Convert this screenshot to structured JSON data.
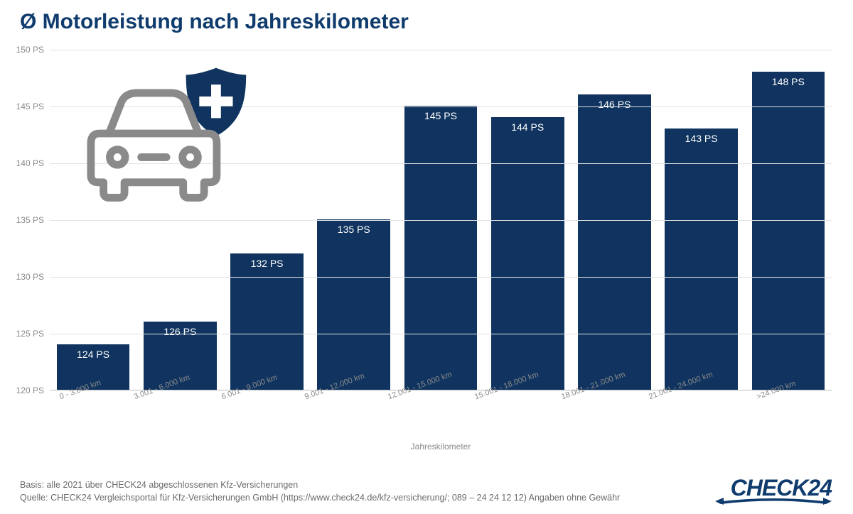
{
  "title": "Ø Motorleistung nach Jahreskilometer",
  "chart": {
    "type": "bar",
    "bar_color": "#10345f",
    "grid_color": "#e2e2e2",
    "axis_color": "#bdbdbd",
    "label_color": "#8a8a8a",
    "bar_label_color": "#ffffff",
    "background_color": "#ffffff",
    "ymin": 120,
    "ymax": 150,
    "ytick_step": 5,
    "yunit": "PS",
    "yticks": [
      {
        "v": 120,
        "label": "120 PS"
      },
      {
        "v": 125,
        "label": "125 PS"
      },
      {
        "v": 130,
        "label": "130 PS"
      },
      {
        "v": 135,
        "label": "135 PS"
      },
      {
        "v": 140,
        "label": "140 PS"
      },
      {
        "v": 145,
        "label": "145 PS"
      },
      {
        "v": 150,
        "label": "150 PS"
      }
    ],
    "bar_width_ratio": 0.84,
    "bar_label_fontsize": 14,
    "ylabel_fontsize": 12,
    "xlabel_fontsize": 11,
    "xlabel_rotation_deg": -20,
    "xaxis_title": "Jahreskilometer",
    "categories": [
      "0 - 3.000 km",
      "3.001 - 6.000 km",
      "6.001 - 9.000 km",
      "9.001 - 12.000 km",
      "12.001 - 15.000 km",
      "15.001 - 18.000 km",
      "18.001 - 21.000 km",
      "21.001 - 24.000 km",
      ">24.000 km"
    ],
    "values": [
      124,
      126,
      132,
      135,
      145,
      144,
      146,
      143,
      148
    ],
    "bar_labels": [
      "124 PS",
      "126 PS",
      "132 PS",
      "135 PS",
      "145 PS",
      "144 PS",
      "146 PS",
      "143 PS",
      "148 PS"
    ]
  },
  "icon": {
    "car_stroke": "#8a8a8a",
    "shield_fill": "#10345f",
    "shield_cross": "#ffffff"
  },
  "footer": {
    "line1": "Basis: alle 2021 über CHECK24 abgeschlossenen Kfz-Versicherungen",
    "line2": "Quelle: CHECK24 Vergleichsportal für Kfz-Versicherungen GmbH (https://www.check24.de/kfz-versicherung/; 089 – 24 24 12 12) Angaben ohne Gewähr"
  },
  "logo": {
    "text": "CHECK24",
    "color": "#0f3b6d",
    "swoosh_color": "#0f3b6d"
  }
}
